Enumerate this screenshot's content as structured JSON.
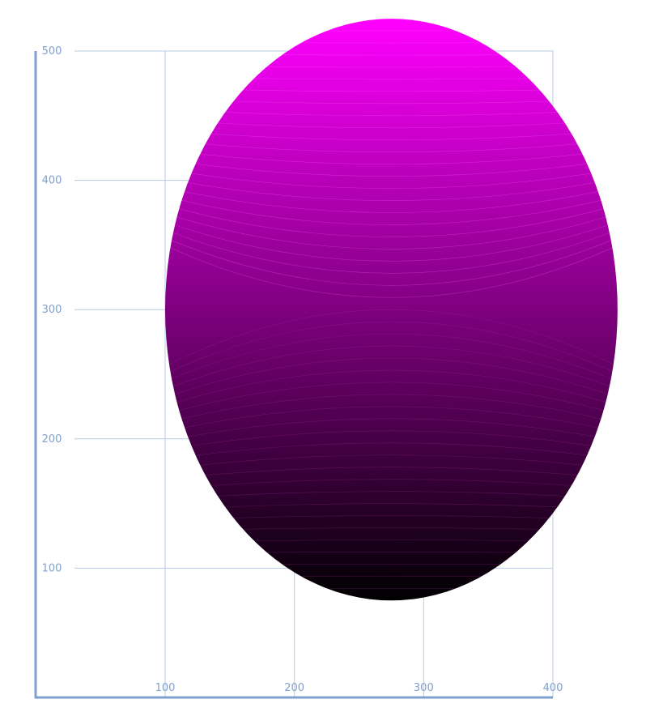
{
  "chart_data": {
    "type": "area",
    "title": "",
    "xlabel": "",
    "ylabel": "",
    "xlim": [
      24,
      400
    ],
    "ylim": [
      0,
      500
    ],
    "x_ticks": [
      "100",
      "200",
      "300",
      "400"
    ],
    "y_ticks": [
      "100",
      "200",
      "300",
      "400",
      "500"
    ],
    "x_tick_values": [
      100,
      200,
      300,
      400
    ],
    "y_tick_values": [
      100,
      200,
      300,
      400,
      500
    ],
    "grid": true,
    "series": [
      {
        "shape": "ellipse",
        "center": [
          275,
          300
        ],
        "radius_x": 175,
        "radius_y": 225,
        "gradient": {
          "direction": "vertical",
          "stops": [
            {
              "y": 75,
              "color": "#000000"
            },
            {
              "y": 300,
              "color": "#7f007f"
            },
            {
              "y": 525,
              "color": "#ff00ff"
            }
          ]
        },
        "contour_lines": true
      }
    ],
    "colors": {
      "axis": "#7f9fcf",
      "grid": "#b8cbe6",
      "fill_low": "#000000",
      "fill_high": "#ff00ff"
    }
  }
}
